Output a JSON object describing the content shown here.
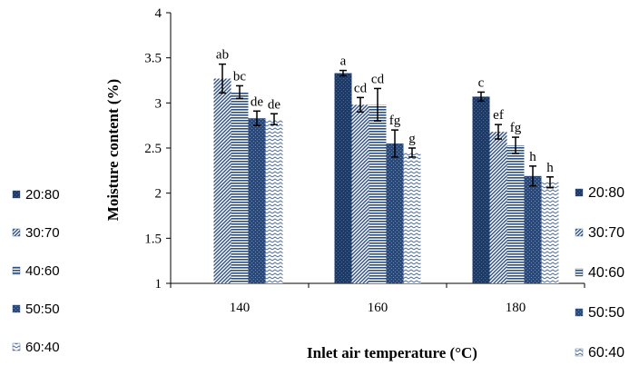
{
  "chart_data": {
    "type": "bar",
    "xlabel": "Inlet air temperature (°C)",
    "ylabel": "Moisture content (%)",
    "ylim": [
      1,
      4
    ],
    "yticks": [
      "1",
      "1.5",
      "2",
      "2.5",
      "3",
      "3.5",
      "4"
    ],
    "categories": [
      "140",
      "160",
      "180"
    ],
    "grid": false,
    "legend_placement": "left and right",
    "series": [
      {
        "name": "20:80",
        "values": [
          null,
          3.33,
          3.07
        ],
        "errors": [
          null,
          0.03,
          0.05
        ],
        "letters": [
          "",
          "a",
          "c"
        ]
      },
      {
        "name": "30:70",
        "values": [
          3.27,
          2.98,
          2.68
        ],
        "errors": [
          0.16,
          0.08,
          0.08
        ],
        "letters": [
          "ab",
          "cd",
          "ef"
        ]
      },
      {
        "name": "40:60",
        "values": [
          3.12,
          2.98,
          2.53
        ],
        "errors": [
          0.07,
          0.18,
          0.09
        ],
        "letters": [
          "bc",
          "cd",
          "fg"
        ]
      },
      {
        "name": "50:50",
        "values": [
          2.83,
          2.55,
          2.19
        ],
        "errors": [
          0.08,
          0.15,
          0.11
        ],
        "letters": [
          "de",
          "fg",
          "h"
        ]
      },
      {
        "name": "60:40",
        "values": [
          2.82,
          2.45,
          2.12
        ],
        "errors": [
          0.06,
          0.05,
          0.06
        ],
        "letters": [
          "de",
          "g",
          "h"
        ]
      }
    ],
    "colors": {
      "dark_bar": "#1f3a64",
      "hatch": "#3b5a8a",
      "axis": "#000000"
    }
  }
}
